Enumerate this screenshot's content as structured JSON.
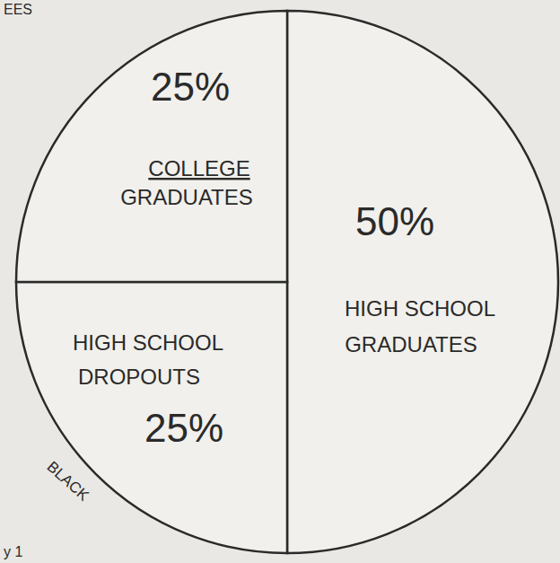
{
  "chart_data": {
    "type": "pie",
    "categories": [
      "HIGH SCHOOL GRADUATES",
      "HIGH SCHOOL DROPOUTS",
      "COLLEGE GRADUATES"
    ],
    "values": [
      50,
      25,
      25
    ],
    "value_labels": [
      "50%",
      "25%",
      "25%"
    ],
    "colors": [
      "#f1f0ec",
      "#f1f0ec",
      "#f1f0ec"
    ],
    "data_labels": true,
    "annotations": [
      "BLACK",
      "EES",
      "y 1"
    ]
  }
}
